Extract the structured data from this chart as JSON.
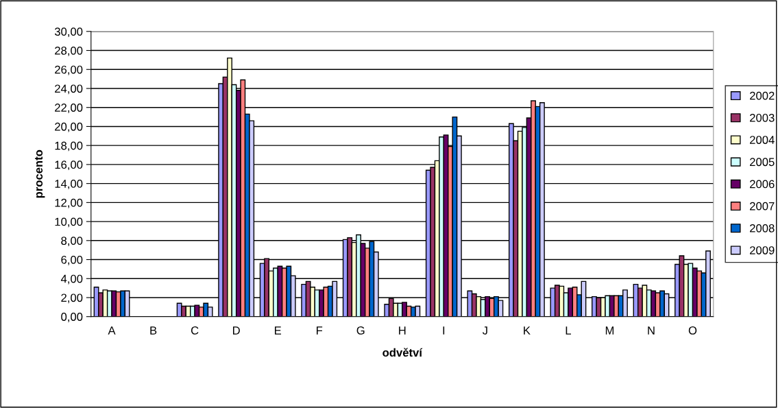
{
  "chart_data": {
    "type": "bar",
    "xlabel": "odvětví",
    "ylabel": "procento",
    "categories": [
      "A",
      "B",
      "C",
      "D",
      "E",
      "F",
      "G",
      "H",
      "I",
      "J",
      "K",
      "L",
      "M",
      "N",
      "O"
    ],
    "ylim": [
      0,
      30
    ],
    "yticks": [
      {
        "value": 0,
        "label": "0,00"
      },
      {
        "value": 2,
        "label": "2,00"
      },
      {
        "value": 4,
        "label": "4,00"
      },
      {
        "value": 6,
        "label": "6,00"
      },
      {
        "value": 8,
        "label": "8,00"
      },
      {
        "value": 10,
        "label": "10,00"
      },
      {
        "value": 12,
        "label": "12,00"
      },
      {
        "value": 14,
        "label": "14,00"
      },
      {
        "value": 16,
        "label": "16,00"
      },
      {
        "value": 18,
        "label": "18,00"
      },
      {
        "value": 20,
        "label": "20,00"
      },
      {
        "value": 22,
        "label": "22,00"
      },
      {
        "value": 24,
        "label": "24,00"
      },
      {
        "value": 26,
        "label": "26,00"
      },
      {
        "value": 28,
        "label": "28,00"
      },
      {
        "value": 30,
        "label": "30,00"
      }
    ],
    "grid": "y",
    "legend": "right",
    "series": [
      {
        "name": "2002",
        "color": "#9999ff",
        "values": [
          3.1,
          null,
          1.4,
          24.5,
          5.6,
          3.4,
          8.1,
          1.3,
          15.4,
          2.7,
          20.3,
          3.0,
          2.1,
          3.4,
          5.5
        ]
      },
      {
        "name": "2003",
        "color": "#993366",
        "values": [
          2.5,
          null,
          1.1,
          25.2,
          6.1,
          3.7,
          8.3,
          1.9,
          15.7,
          2.4,
          18.5,
          3.3,
          2.0,
          3.0,
          6.4
        ]
      },
      {
        "name": "2004",
        "color": "#ffffcc",
        "values": [
          2.8,
          null,
          1.1,
          27.2,
          4.8,
          3.1,
          7.8,
          1.4,
          16.4,
          2.1,
          19.5,
          3.2,
          2.0,
          3.3,
          5.5
        ]
      },
      {
        "name": "2005",
        "color": "#ccffff",
        "values": [
          2.7,
          null,
          1.1,
          24.4,
          5.1,
          2.8,
          8.6,
          1.4,
          18.9,
          1.8,
          19.9,
          2.5,
          2.2,
          2.8,
          5.6
        ]
      },
      {
        "name": "2006",
        "color": "#660066",
        "values": [
          2.7,
          null,
          1.2,
          23.8,
          5.3,
          2.8,
          7.7,
          1.5,
          19.1,
          2.1,
          20.9,
          3.0,
          2.2,
          2.7,
          5.1
        ]
      },
      {
        "name": "2007",
        "color": "#ff8080",
        "values": [
          2.6,
          null,
          1.0,
          24.9,
          5.1,
          3.1,
          7.2,
          1.1,
          17.9,
          1.9,
          22.7,
          3.1,
          2.2,
          2.5,
          4.8
        ]
      },
      {
        "name": "2008",
        "color": "#0066cc",
        "values": [
          2.7,
          null,
          1.4,
          21.3,
          5.3,
          3.2,
          7.9,
          1.0,
          21.0,
          2.1,
          22.1,
          2.3,
          2.2,
          2.7,
          4.6
        ]
      },
      {
        "name": "2009",
        "color": "#ccccff",
        "values": [
          2.7,
          null,
          1.0,
          20.6,
          4.3,
          3.7,
          6.8,
          1.1,
          19.0,
          1.7,
          22.5,
          3.7,
          2.8,
          2.4,
          6.9
        ]
      }
    ]
  }
}
